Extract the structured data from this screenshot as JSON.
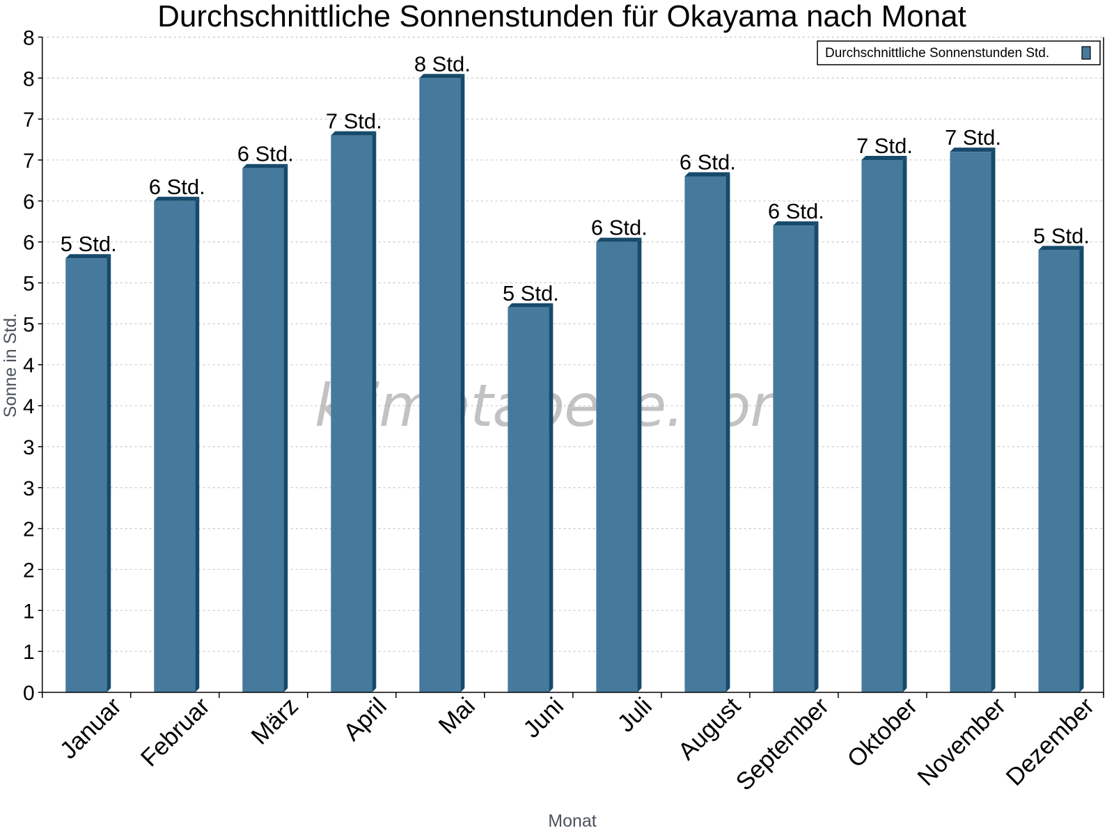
{
  "chart_data": {
    "type": "bar",
    "title": "Durchschnittliche Sonnenstunden für Okayama nach Monat",
    "xlabel": "Monat",
    "ylabel": "Sonne in Std.",
    "categories": [
      "Januar",
      "Februar",
      "März",
      "April",
      "Mai",
      "Juni",
      "Juli",
      "August",
      "September",
      "Oktober",
      "November",
      "Dezember"
    ],
    "series": [
      {
        "name": "Durchschnittliche Sonnenstunden Std.",
        "values": [
          5.3,
          6.0,
          6.4,
          6.8,
          7.5,
          4.7,
          5.5,
          6.3,
          5.7,
          6.5,
          6.6,
          5.4
        ],
        "data_labels": [
          "5 Std.",
          "6 Std.",
          "6 Std.",
          "7 Std.",
          "8 Std.",
          "5 Std.",
          "6 Std.",
          "6 Std.",
          "6 Std.",
          "7 Std.",
          "7 Std.",
          "5 Std."
        ]
      }
    ],
    "ylim": [
      0,
      8
    ],
    "y_ticks": [
      0,
      0.5,
      1,
      1.5,
      2,
      2.5,
      3,
      3.5,
      4,
      4.5,
      5,
      5.5,
      6,
      6.5,
      7,
      7.5,
      8
    ],
    "y_tick_labels": [
      "0",
      "1",
      "1",
      "2",
      "2",
      "3",
      "3",
      "4",
      "4",
      "5",
      "5",
      "6",
      "6",
      "7",
      "7",
      "8",
      "8"
    ],
    "grid": true,
    "legend_position": "top-right",
    "watermark": "klimatabelle.com"
  },
  "colors": {
    "bar_front": "#467a9c",
    "bar_side": "#174a6a",
    "bar_top": "#174a6a",
    "grid": "#c8c8c8",
    "axis": "#000000"
  }
}
